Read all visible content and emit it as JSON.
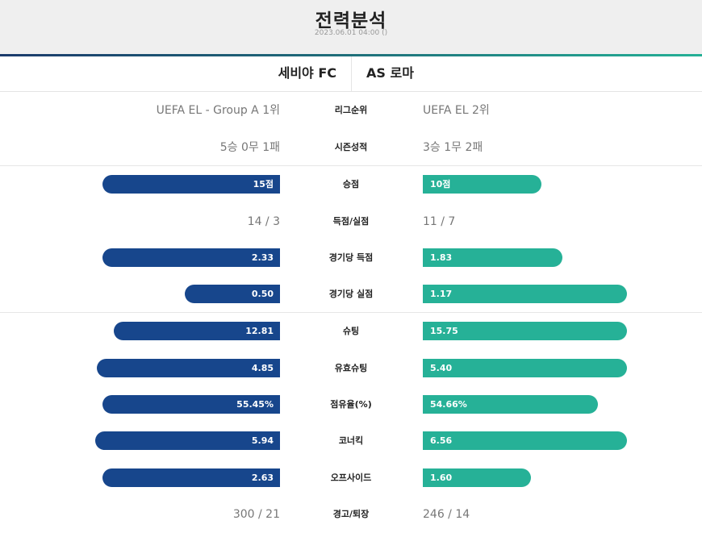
{
  "header": {
    "title": "전력분석",
    "date": "2023.06.01 04:00 ()"
  },
  "teams": {
    "home": "세비야 FC",
    "away": "AS 로마"
  },
  "colors": {
    "home_bar": "#17468c",
    "away_bar": "#26b197"
  },
  "stats": [
    {
      "label": "리그순위",
      "home": "UEFA EL - Group A 1위",
      "away": "UEFA EL 2위"
    },
    {
      "label": "시즌성적",
      "home": "5승 0무 1패",
      "away": "3승 1무 2패"
    },
    {
      "label": "승점",
      "home": "15점",
      "away": "10점",
      "home_value": 15,
      "away_value": 10
    },
    {
      "label": "득점/실점",
      "home": "14 / 3",
      "away": "11 / 7"
    },
    {
      "label": "경기당 득점",
      "home": "2.33",
      "away": "1.83",
      "home_value": 2.33,
      "away_value": 1.83
    },
    {
      "label": "경기당 실점",
      "home": "0.50",
      "away": "1.17",
      "home_value": 0.5,
      "away_value": 1.17
    },
    {
      "label": "슈팅",
      "home": "12.81",
      "away": "15.75",
      "home_value": 12.81,
      "away_value": 15.75
    },
    {
      "label": "유효슈팅",
      "home": "4.85",
      "away": "5.40",
      "home_value": 4.85,
      "away_value": 5.4
    },
    {
      "label": "점유율(%)",
      "home": "55.45%",
      "away": "54.66%",
      "home_value": 55.45,
      "away_value": 54.66
    },
    {
      "label": "코너킥",
      "home": "5.94",
      "away": "6.56",
      "home_value": 5.94,
      "away_value": 6.56
    },
    {
      "label": "오프사이드",
      "home": "2.63",
      "away": "1.60",
      "home_value": 2.63,
      "away_value": 1.6
    },
    {
      "label": "경고/퇴장",
      "home": "300 / 21",
      "away": "246 / 14"
    }
  ]
}
